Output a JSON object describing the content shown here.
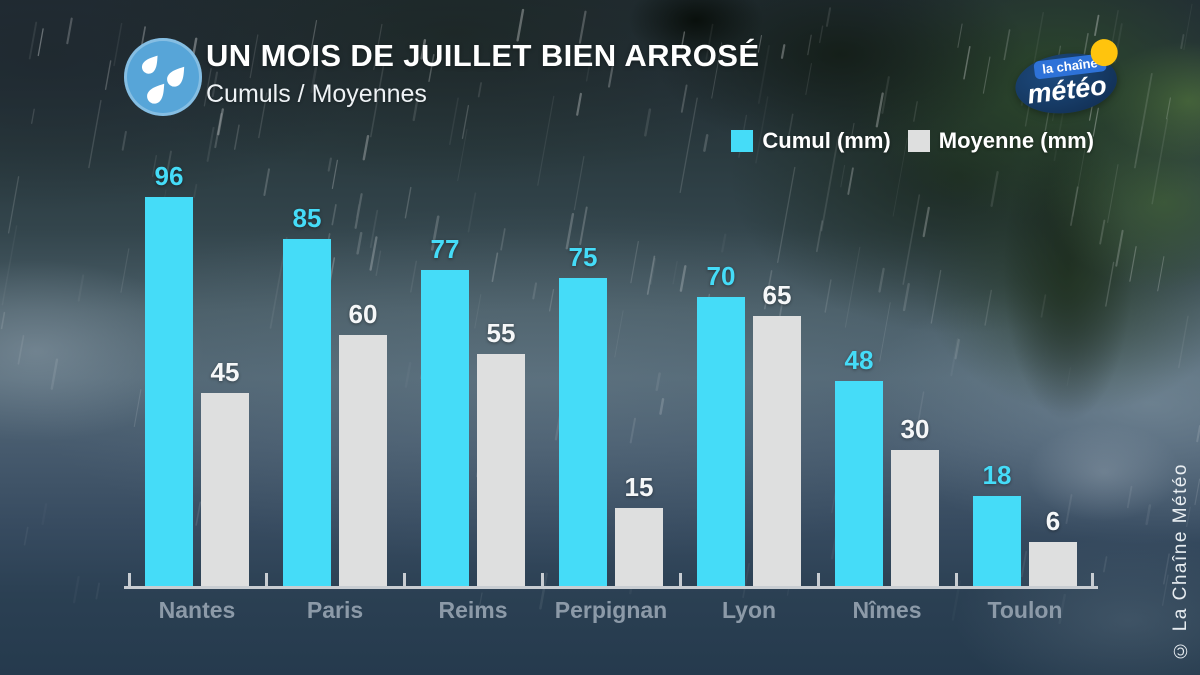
{
  "header": {
    "title": "UN MOIS DE JUILLET BIEN ARROSÉ",
    "subtitle": "Cumuls / Moyennes",
    "icon": "raindrops-icon"
  },
  "brand": {
    "name_line1": "la chaîne",
    "name_line2": "météo",
    "sun_color": "#ffc40d",
    "ellipse_color": "#163a64",
    "chip_color": "#2e72d8"
  },
  "legend": {
    "items": [
      {
        "label": "Cumul (mm)",
        "color": "#45dcf8"
      },
      {
        "label": "Moyenne (mm)",
        "color": "#dedfdf"
      }
    ]
  },
  "chart_data": {
    "type": "bar",
    "title": "UN MOIS DE JUILLET BIEN ARROSÉ",
    "subtitle": "Cumuls / Moyennes",
    "categories": [
      "Nantes",
      "Paris",
      "Reims",
      "Perpignan",
      "Lyon",
      "Nîmes",
      "Toulon"
    ],
    "series": [
      {
        "name": "Cumul (mm)",
        "color": "#45dcf8",
        "label_color": "#45dcf8",
        "values": [
          96,
          85,
          77,
          75,
          70,
          48,
          18
        ]
      },
      {
        "name": "Moyenne (mm)",
        "color": "#dedfdf",
        "label_color": "#f5f7f8",
        "values": [
          45,
          60,
          55,
          15,
          65,
          30,
          6
        ]
      }
    ],
    "xlabel": "",
    "ylabel": "",
    "ylim": [
      0,
      100
    ],
    "grid": false,
    "value_labels": true,
    "legend_position": "top-right",
    "axis_color": "#c8cdd2",
    "category_label_color": "#8c9aa8"
  },
  "footer": {
    "copyright": "© La Chaîne Météo"
  }
}
